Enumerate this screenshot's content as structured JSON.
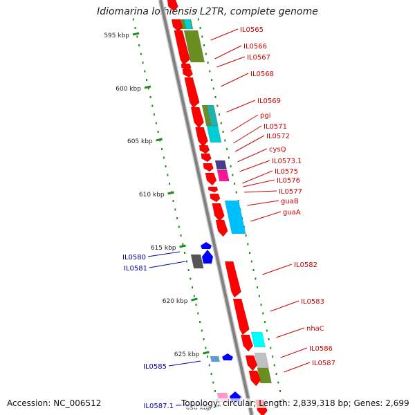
{
  "title": "Idiomarina loihiensis L2TR, complete genome",
  "footer": {
    "accession": "Accession: NC_006512",
    "stats": "Topology: circular; Length: 2,839,318 bp; Genes: 2,699"
  },
  "colors": {
    "backbone": "#808080",
    "ruler_tick": "#228B22",
    "forward_gene": "#ff0000",
    "reverse_gene": "#0000ff",
    "forward_label": "#cc0000",
    "reverse_label": "#0000aa"
  },
  "scale_labels": [
    "595 kbp",
    "600 kbp",
    "605 kbp",
    "610 kbp",
    "615 kbp",
    "620 kbp",
    "625 kbp",
    "630 kbp"
  ],
  "forward_gene_labels": [
    "IL0565",
    "IL0566",
    "IL0567",
    "IL0568",
    "IL0569",
    "pgi",
    "IL0571",
    "IL0572",
    "cysQ",
    "IL0573.1",
    "IL0575",
    "IL0576",
    "IL0577",
    "guaB",
    "guaA",
    "IL0582",
    "IL0583",
    "nhaC",
    "IL0586",
    "IL0587"
  ],
  "reverse_gene_labels": [
    "IL0580",
    "IL0581",
    "IL0585",
    "IL0587.1"
  ]
}
